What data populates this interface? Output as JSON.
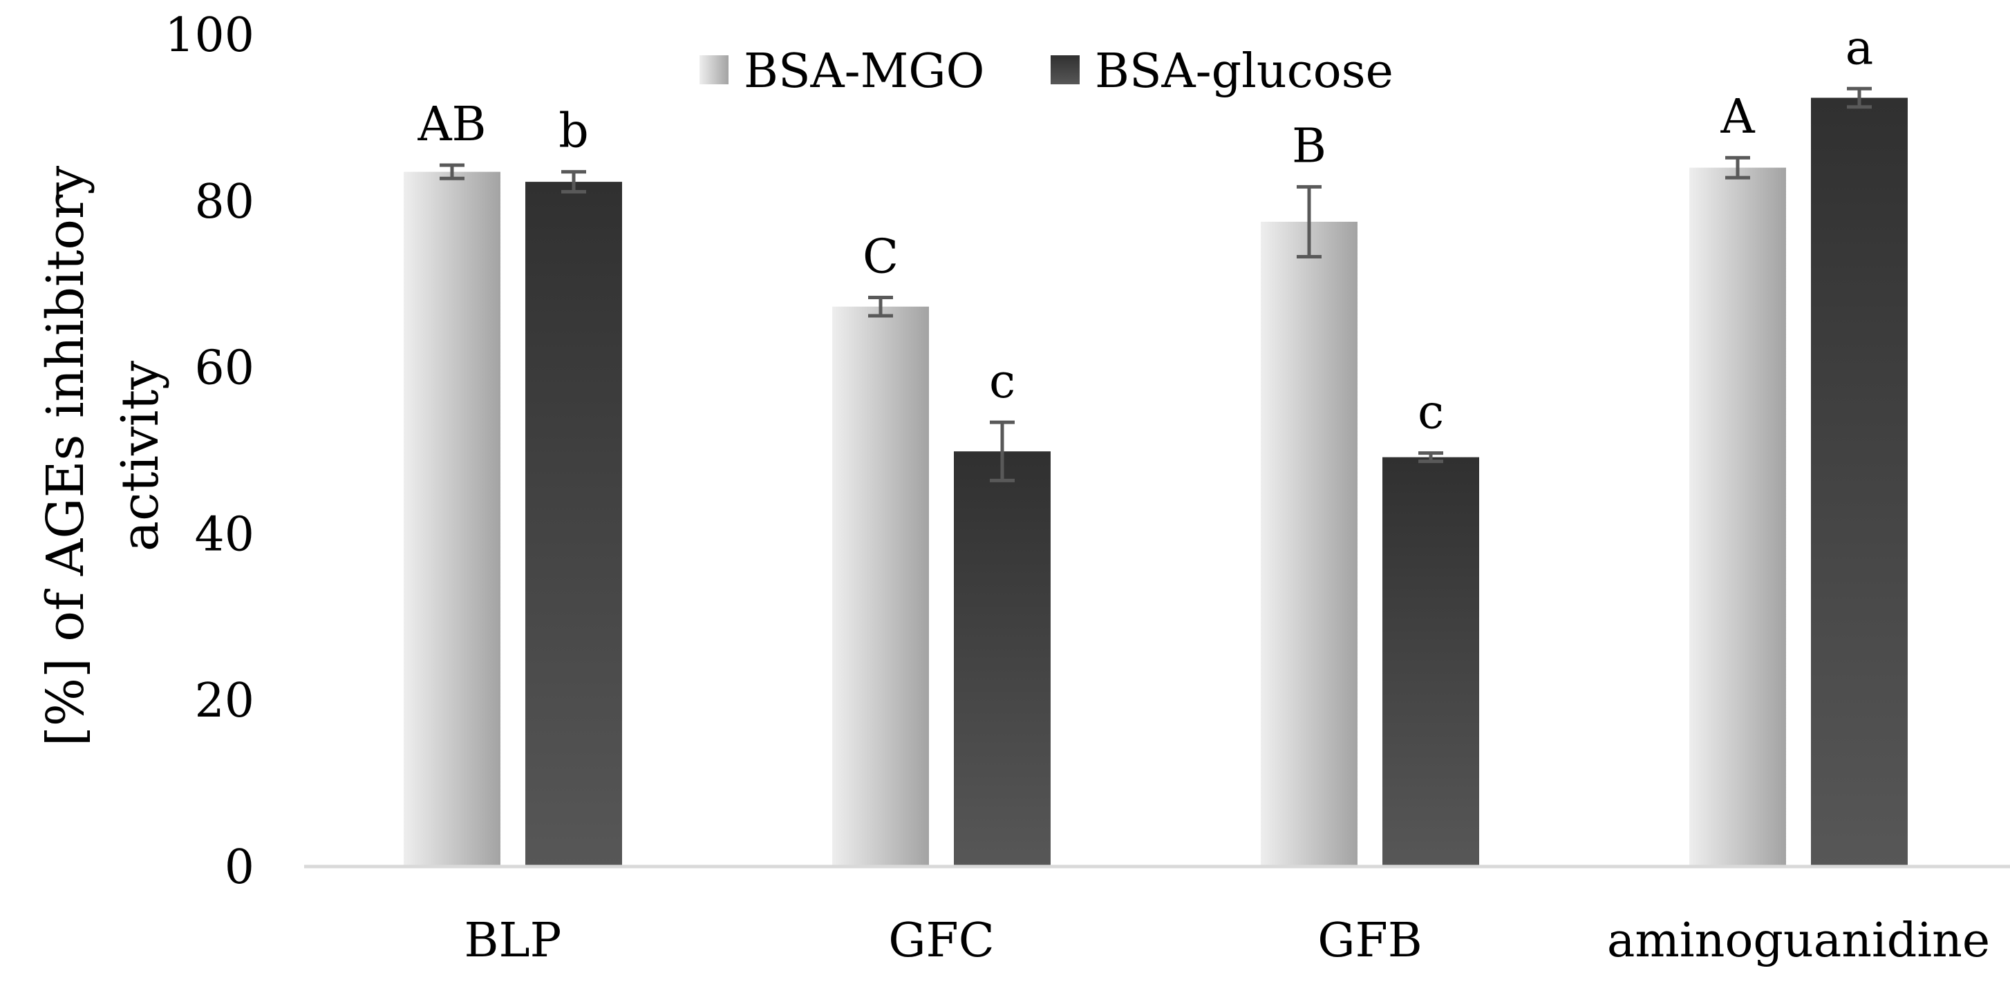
{
  "chart_data": {
    "type": "bar",
    "title": "",
    "xlabel": "",
    "ylabel_lines": [
      "[%] of AGEs inhibitory",
      "activity"
    ],
    "ylim": [
      0,
      100
    ],
    "yticks": [
      0,
      20,
      40,
      60,
      80,
      100
    ],
    "grid": false,
    "legend_position": "top-center",
    "categories": [
      "BLP",
      "GFC",
      "GFB",
      "aminoguanidine"
    ],
    "series": [
      {
        "name": "BSA-MGO",
        "values": [
          83.5,
          67.3,
          77.5,
          84.0
        ],
        "errors": [
          0.8,
          1.1,
          4.2,
          1.2
        ],
        "labels": [
          "AB",
          "C",
          "B",
          "A"
        ],
        "color_light": "#e6e6e6",
        "color_dark": "#a6a6a6"
      },
      {
        "name": "BSA-glucose",
        "values": [
          82.3,
          49.9,
          49.2,
          92.4
        ],
        "errors": [
          1.2,
          3.5,
          0.5,
          1.1
        ],
        "labels": [
          "b",
          "c",
          "c",
          "a"
        ],
        "color_light": "#333333",
        "color_dark": "#555555"
      }
    ],
    "error_bar_color": "#595959",
    "axis_color": "#d9d9d9"
  }
}
